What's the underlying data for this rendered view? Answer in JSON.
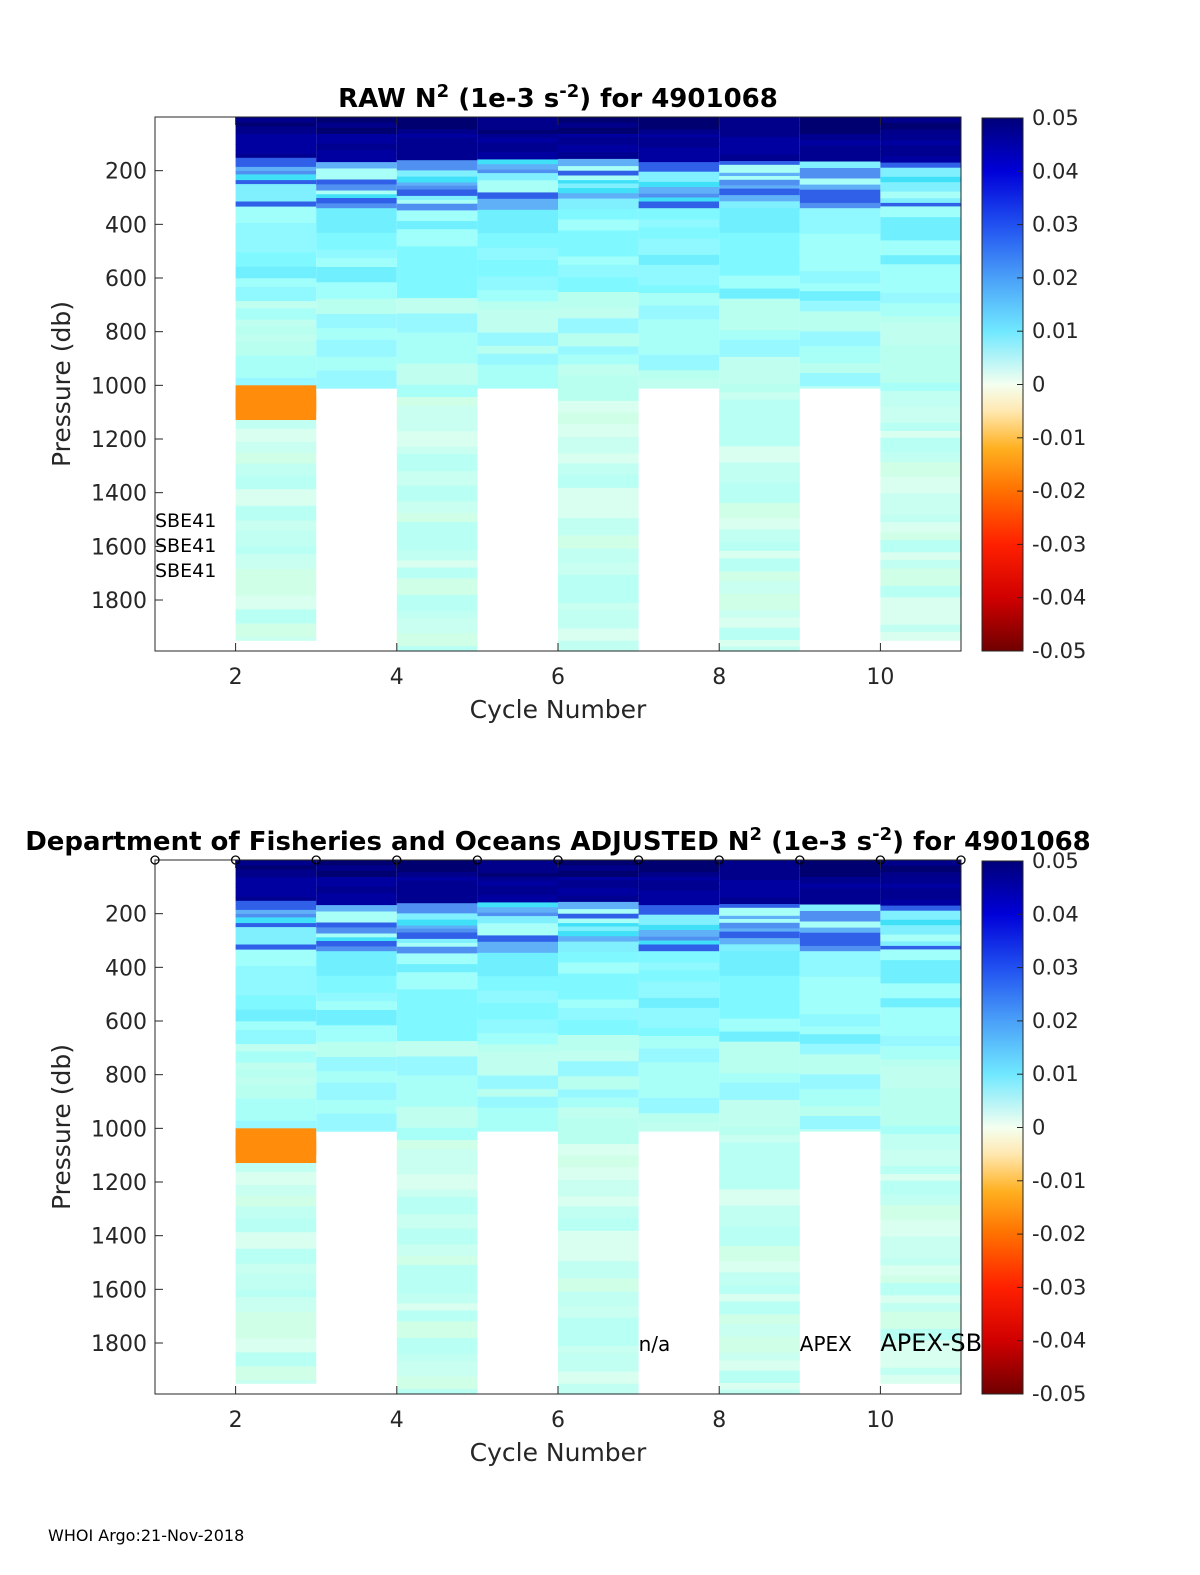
{
  "footer": "WHOI Argo:21-Nov-2018",
  "chart_data": [
    {
      "type": "heatmap",
      "title_prefix": "RAW N",
      "title_sup1": "2",
      "title_mid": " (1e-3 s",
      "title_sup2": "-2",
      "title_suffix": ") for 4901068",
      "xlabel": "Cycle Number",
      "ylabel": "Pressure (db)",
      "xlim": [
        1,
        11
      ],
      "ylim": [
        0,
        1990
      ],
      "xticks": [
        "2",
        "4",
        "6",
        "8",
        "10"
      ],
      "yticks": [
        "200",
        "400",
        "600",
        "800",
        "1000",
        "1200",
        "1400",
        "1600",
        "1800"
      ],
      "colorbar_ticks": [
        "0.05",
        "0.04",
        "0.03",
        "0.02",
        "0.01",
        "0",
        "-0.01",
        "-0.02",
        "-0.03",
        "-0.04",
        "-0.05"
      ],
      "clim": [
        -0.05,
        0.05
      ],
      "cycles": [
        2,
        3,
        4,
        5,
        6,
        7,
        8,
        9,
        10
      ],
      "max_pressure": [
        1950,
        1010,
        1990,
        1010,
        1990,
        1010,
        1990,
        1010,
        1950
      ],
      "annotations_left": [
        "SBE41",
        "SBE41",
        "SBE41"
      ]
    },
    {
      "type": "heatmap",
      "title_prefix": "Department of Fisheries and Oceans  ADJUSTED N",
      "title_sup1": "2",
      "title_mid": " (1e-3 s",
      "title_sup2": "-2",
      "title_suffix": ") for 4901068",
      "xlabel": "Cycle Number",
      "ylabel": "Pressure (db)",
      "xlim": [
        1,
        11
      ],
      "ylim": [
        0,
        1990
      ],
      "xticks": [
        "2",
        "4",
        "6",
        "8",
        "10"
      ],
      "yticks": [
        "200",
        "400",
        "600",
        "800",
        "1000",
        "1200",
        "1400",
        "1600",
        "1800"
      ],
      "colorbar_ticks": [
        "0.05",
        "0.04",
        "0.03",
        "0.02",
        "0.01",
        "0",
        "-0.01",
        "-0.02",
        "-0.03",
        "-0.04",
        "-0.05"
      ],
      "clim": [
        -0.05,
        0.05
      ],
      "cycles": [
        2,
        3,
        4,
        5,
        6,
        7,
        8,
        9,
        10
      ],
      "max_pressure": [
        1950,
        1010,
        1990,
        1010,
        1990,
        1010,
        1990,
        1010,
        1950
      ],
      "marker_cycles": [
        1,
        2,
        3,
        4,
        5,
        6,
        7,
        8,
        9,
        10,
        11
      ],
      "marker_symbol": "o",
      "annotations": [
        {
          "text": "n/a",
          "cycle": 7,
          "pressure": 1800
        },
        {
          "text": "APEX",
          "cycle": 9,
          "pressure": 1800
        },
        {
          "text": "APEX-SB",
          "cycle": 10,
          "pressure": 1800
        }
      ]
    }
  ]
}
